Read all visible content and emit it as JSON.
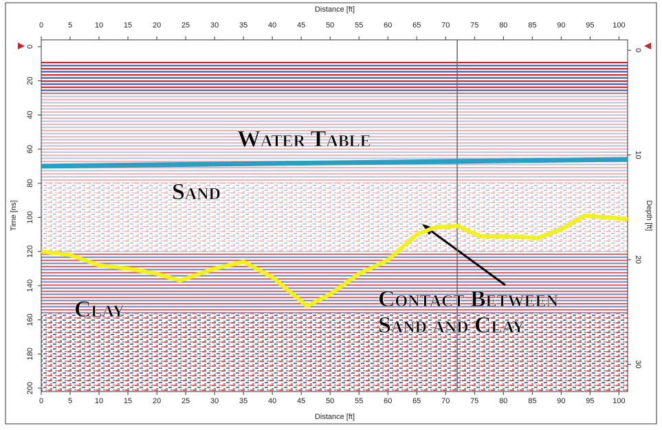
{
  "chart_data": {
    "type": "radargram",
    "x_label": "Distance [ft]",
    "y_label": "Time [ns]",
    "y2_label": "Depth [ft]",
    "xlim": [
      0,
      101.5
    ],
    "xticks": [
      0,
      5,
      10,
      15,
      20,
      25,
      30,
      35,
      40,
      45,
      50,
      55,
      60,
      65,
      70,
      75,
      80,
      85,
      90,
      95,
      100
    ],
    "ylim": [
      -4,
      202
    ],
    "yticks": [
      0,
      20,
      40,
      60,
      80,
      100,
      120,
      140,
      160,
      180,
      200
    ],
    "y2lim": [
      -1,
      32.6
    ],
    "y2ticks": [
      0,
      10,
      20,
      30
    ],
    "cursor_x": 72,
    "series": [
      {
        "name": "Water Table",
        "color": "#2a9fc4",
        "x": [
          0,
          101.5
        ],
        "values": [
          70,
          66
        ]
      },
      {
        "name": "Contact Between Sand and Clay",
        "color": "#f2f21a",
        "x": [
          0,
          5,
          10,
          15,
          20,
          24,
          30,
          35,
          40,
          46,
          50,
          55,
          60,
          65,
          68,
          72,
          76,
          80,
          86,
          90,
          94,
          98,
          101.5
        ],
        "values": [
          120,
          122,
          128,
          130,
          133,
          137,
          130,
          126,
          135,
          152,
          145,
          133,
          125,
          110,
          106,
          105,
          111,
          111,
          112,
          107,
          99,
          100,
          101
        ]
      }
    ],
    "labels": [
      "Sand",
      "Clay"
    ]
  }
}
